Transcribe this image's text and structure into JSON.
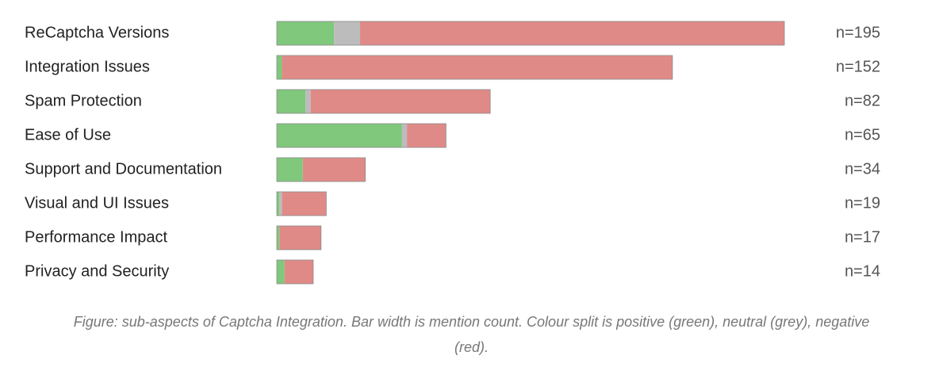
{
  "chart_data": {
    "type": "stacked_barh",
    "categories": [
      "ReCaptcha Versions",
      "Integration Issues",
      "Spam Protection",
      "Ease of Use",
      "Support and Documentation",
      "Visual and UI Issues",
      "Performance Impact",
      "Privacy and Security"
    ],
    "series": [
      {
        "color": "#80c87c",
        "values": [
          22,
          2,
          11,
          48,
          10,
          1,
          1,
          3
        ]
      },
      {
        "color": "#bcbcbc",
        "values": [
          10,
          0,
          2,
          2,
          0,
          1,
          0,
          0
        ]
      },
      {
        "color": "#e08a88",
        "values": [
          163,
          150,
          69,
          15,
          24,
          17,
          16,
          11
        ]
      }
    ],
    "n_labels": [
      "n=195",
      "n=152",
      "n=82",
      "n=65",
      "n=34",
      "n=19",
      "n=17",
      "n=14"
    ],
    "caption": "Figure: sub-aspects of Captcha Integration. Bar width is mention count. Colour split is positive (green), neutral (grey), negative (red)."
  }
}
